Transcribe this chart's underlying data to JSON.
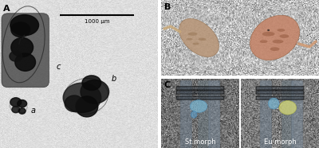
{
  "figure_width": 4.0,
  "figure_height": 1.86,
  "dpi": 100,
  "bg_white": "#ffffff",
  "panel_A_bg": "#c8c5c0",
  "panel_B_bg": "#f8f6f4",
  "panel_C_left_bg": "#9aa4a8",
  "panel_C_right_bg": "#9aa4a8",
  "label_A": "A",
  "label_B": "B",
  "label_C": "C",
  "scale_bar_text": "1000 μm",
  "left_morph": "St morph",
  "right_morph": "Eu morph",
  "label_fontsize": 7,
  "scale_fontsize": 5,
  "morph_fontsize": 6,
  "sublabel_fontsize": 6,
  "blue_color": "#7ab8d4",
  "yellow_color": "#d4d87a",
  "organism_dark": "#0a0a0a",
  "organism_mid": "#2a2a2a",
  "organism_outline": "#555555"
}
